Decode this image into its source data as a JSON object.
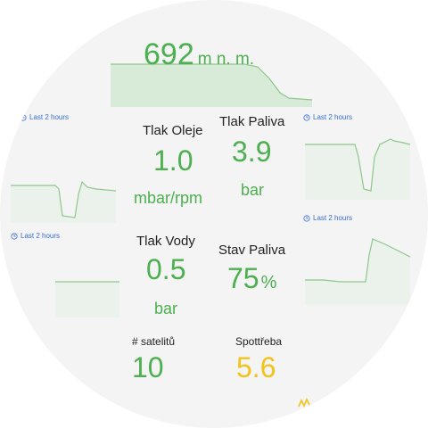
{
  "altitude": {
    "value": "692",
    "unit": "m n. m."
  },
  "time_hint": "Last 2 hours",
  "tiles": {
    "oil_pressure": {
      "label": "Tlak Oleje",
      "value": "1.0",
      "unit": "mbar/rpm"
    },
    "fuel_pressure": {
      "label": "Tlak Paliva",
      "value": "3.9",
      "unit": "bar"
    },
    "water_pressure": {
      "label": "Tlak Vody",
      "value": "0.5",
      "unit": "bar"
    },
    "fuel_level": {
      "label": "Stav Paliva",
      "value": "75",
      "unit": "%"
    },
    "satellites": {
      "label": "# satelitů",
      "value": "10"
    },
    "consumption": {
      "label": "Spottřeba",
      "value": "5.6"
    }
  },
  "colors": {
    "ok": "#4caf50",
    "warn": "#f2c318",
    "link": "#3a6fd6"
  }
}
